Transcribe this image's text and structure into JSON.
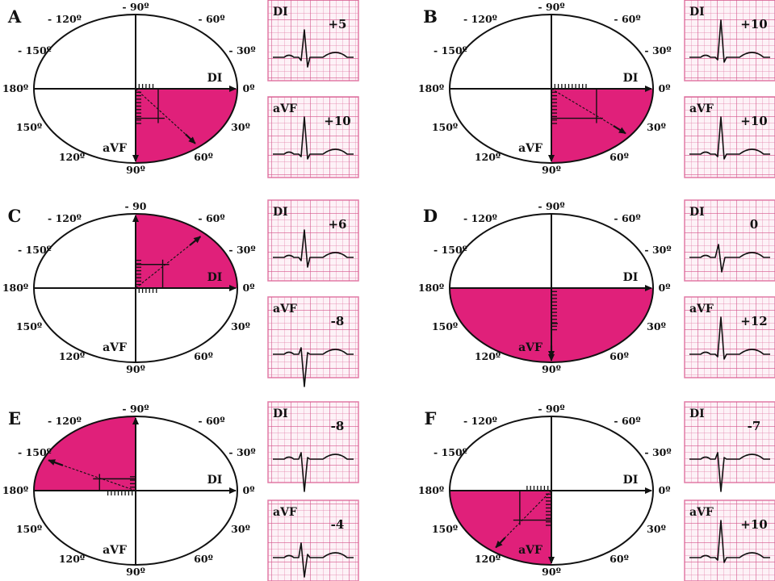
{
  "colors": {
    "sector": "#e0207a",
    "grid": "#e27aa6",
    "grid_bg": "#fdf2f7",
    "ink": "#111111"
  },
  "panels": [
    {
      "letter": "A",
      "angles": {
        "m90": "- 90º",
        "m120": "- 120º",
        "m60": "- 60º",
        "m150": "- 150º",
        "m30": "- 30º",
        "d180": "180º",
        "d0": "0º",
        "d150": "150º",
        "d30": "30º",
        "d120": "120º",
        "d60": "60º",
        "d90": "90º"
      },
      "di_label": "DI",
      "avf_label": "aVF",
      "sector": [
        0,
        90
      ],
      "vector_angle": 52,
      "di_value": 5,
      "avf_value": 10,
      "ecg_di": {
        "lead": "DI",
        "value": "+5",
        "shape": "pos_small"
      },
      "ecg_avf": {
        "lead": "aVF",
        "value": "+10",
        "shape": "pos_tall"
      }
    },
    {
      "letter": "B",
      "angles": {
        "m90": "- 90º",
        "m120": "- 120º",
        "m60": "- 60º",
        "m150": "- 150º",
        "m30": "- 30º",
        "d180": "180º",
        "d0": "0º",
        "d150": "150º",
        "d30": "30º",
        "d120": "120º",
        "d60": "60º",
        "d90": "90º"
      },
      "di_label": "DI",
      "avf_label": "aVF",
      "sector": [
        0,
        90
      ],
      "vector_angle": 40,
      "di_value": 10,
      "avf_value": 10,
      "ecg_di": {
        "lead": "DI",
        "value": "+10",
        "shape": "pos_tall"
      },
      "ecg_avf": {
        "lead": "aVF",
        "value": "+10",
        "shape": "pos_tall"
      }
    },
    {
      "letter": "C",
      "angles": {
        "m90": "- 90",
        "m120": "- 120º",
        "m60": "- 60º",
        "m150": "- 150º",
        "m30": "- 30º",
        "d180": "180º",
        "d0": "0º",
        "d150": "150º",
        "d30": "30º",
        "d120": "120º",
        "d60": "60º",
        "d90": "90º"
      },
      "di_label": "DI",
      "avf_label": "aVF",
      "sector": [
        -90,
        0
      ],
      "vector_angle": -48,
      "di_value": 6,
      "avf_value": -8,
      "ecg_di": {
        "lead": "DI",
        "value": "+6",
        "shape": "pos_small"
      },
      "ecg_avf": {
        "lead": "aVF",
        "value": "-8",
        "shape": "neg_deep"
      }
    },
    {
      "letter": "D",
      "angles": {
        "m90": "- 90º",
        "m120": "- 120º",
        "m60": "- 60º",
        "m150": "- 150º",
        "m30": "- 30º",
        "d180": "180º",
        "d0": "0º",
        "d150": "150º",
        "d30": "30º",
        "d120": "120º",
        "d60": "60º",
        "d90": "90º"
      },
      "di_label": "DI",
      "avf_label": "aVF",
      "sector": [
        0,
        180
      ],
      "vector_angle": 90,
      "di_value": 0,
      "avf_value": 12,
      "ecg_di": {
        "lead": "DI",
        "value": "0",
        "shape": "biphasic"
      },
      "ecg_avf": {
        "lead": "aVF",
        "value": "+12",
        "shape": "pos_tall"
      }
    },
    {
      "letter": "E",
      "angles": {
        "m90": "- 90º",
        "m120": "- 120º",
        "m60": "- 60º",
        "m150": "- 150º",
        "m30": "- 30º",
        "d180": "180º",
        "d0": "0º",
        "d150": "150º",
        "d30": "30º",
        "d120": "120º",
        "d60": "60º",
        "d90": "90º"
      },
      "di_label": "DI",
      "avf_label": "aVF",
      "sector": [
        -180,
        -90
      ],
      "vector_angle": -154,
      "di_value": -8,
      "avf_value": -4,
      "ecg_di": {
        "lead": "DI",
        "value": "-8",
        "shape": "neg_deep"
      },
      "ecg_avf": {
        "lead": "aVF",
        "value": "-4",
        "shape": "rs_neg"
      }
    },
    {
      "letter": "F",
      "angles": {
        "m90": "- 90º",
        "m120": "- 120º",
        "m60": "- 60º",
        "m150": "- 150º",
        "m30": "- 30º",
        "d180": "180º",
        "d0": "0º",
        "d150": "150º",
        "d30": "30º",
        "d120": "120º",
        "d60": "60º",
        "d90": "90º"
      },
      "di_label": "DI",
      "avf_label": "aVF",
      "sector": [
        90,
        180
      ],
      "vector_angle": 125,
      "di_value": -7,
      "avf_value": 10,
      "ecg_di": {
        "lead": "DI",
        "value": "-7",
        "shape": "neg_deep"
      },
      "ecg_avf": {
        "lead": "aVF",
        "value": "+10",
        "shape": "pos_tall"
      }
    }
  ]
}
